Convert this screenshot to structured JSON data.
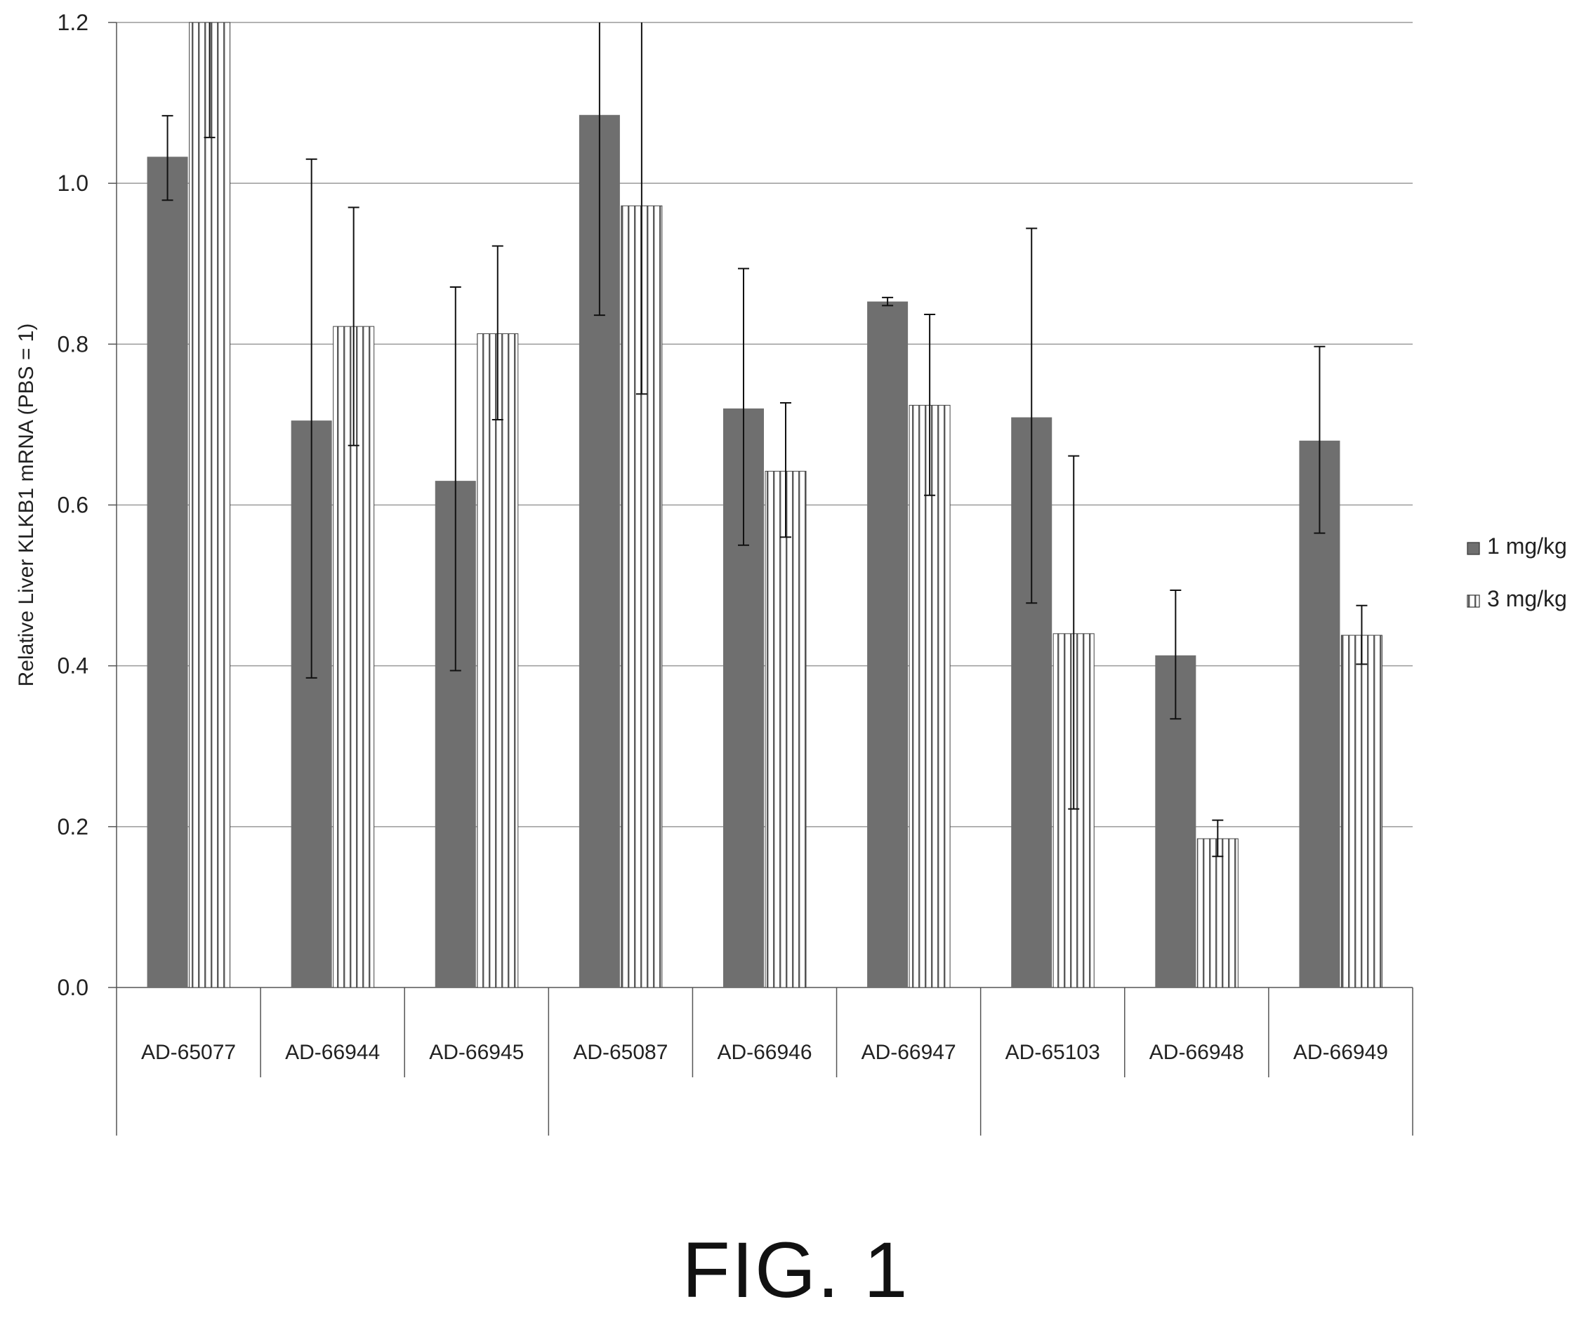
{
  "chart_data": {
    "type": "bar",
    "ylabel": "Relative Liver KLKB1 mRNA (PBS = 1)",
    "ylim": [
      0,
      1.2
    ],
    "yticks": [
      "0.0",
      "0.2",
      "0.4",
      "0.6",
      "0.8",
      "1.0",
      "1.2"
    ],
    "grid": true,
    "legend_position": "right",
    "categories": [
      "AD-65077",
      "AD-66944",
      "AD-66945",
      "AD-65087",
      "AD-66946",
      "AD-66947",
      "AD-65103",
      "AD-66948",
      "AD-66949"
    ],
    "series": [
      {
        "name": "1 mg/kg",
        "pattern": "solid-dark",
        "values": [
          1.033,
          0.705,
          0.63,
          1.085,
          0.72,
          0.853,
          0.709,
          0.413,
          0.68
        ],
        "error_low": [
          0.979,
          0.385,
          0.394,
          0.836,
          0.55,
          0.848,
          0.478,
          0.334,
          0.565
        ],
        "error_high": [
          1.084,
          1.03,
          0.871,
          1.2,
          0.894,
          0.858,
          0.944,
          0.494,
          0.797
        ]
      },
      {
        "name": "3 mg/kg",
        "pattern": "vertical-stripes",
        "values": [
          1.2,
          0.822,
          0.813,
          0.972,
          0.642,
          0.724,
          0.44,
          0.185,
          0.438
        ],
        "error_low": [
          1.057,
          0.674,
          0.706,
          0.738,
          0.56,
          0.612,
          0.222,
          0.163,
          0.402
        ],
        "error_high": [
          1.2,
          0.97,
          0.922,
          1.2,
          0.727,
          0.837,
          0.661,
          0.208,
          0.475
        ]
      }
    ]
  },
  "colors": {
    "bar_dark": "#6f6f6f",
    "stripe": "#5a5a5a",
    "grid": "#9a9a9a",
    "axis": "#555555"
  },
  "caption": "FIG. 1"
}
